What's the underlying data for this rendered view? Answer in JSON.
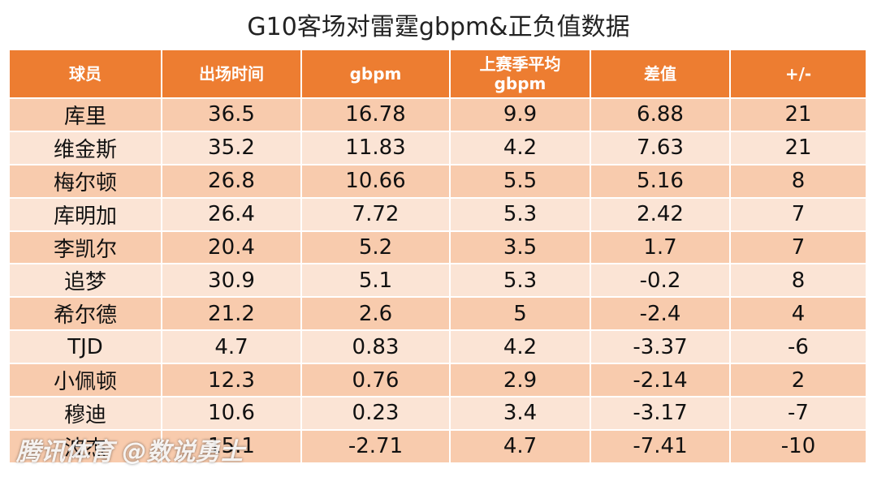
{
  "title": "G10客场对雷霆gbpm&正负值数据",
  "table": {
    "header": [
      "球员",
      "出场时间",
      "gbpm",
      "上赛季平均\ngbpm",
      "差值",
      "+/-"
    ],
    "rows": [
      [
        "库里",
        36.5,
        16.78,
        9.9,
        6.88,
        21
      ],
      [
        "维金斯",
        35.2,
        11.83,
        4.2,
        7.63,
        21
      ],
      [
        "梅尔顿",
        26.8,
        10.66,
        5.5,
        5.16,
        8
      ],
      [
        "库明加",
        26.4,
        7.72,
        5.3,
        2.42,
        7
      ],
      [
        "李凯尔",
        20.4,
        5.2,
        3.5,
        1.7,
        7
      ],
      [
        "追梦",
        30.9,
        5.1,
        5.3,
        -0.2,
        8
      ],
      [
        "希尔德",
        21.2,
        2.6,
        5,
        -2.4,
        4
      ],
      [
        "TJD",
        4.7,
        0.83,
        4.2,
        -3.37,
        -6
      ],
      [
        "小佩顿",
        12.3,
        0.76,
        2.9,
        -2.14,
        2
      ],
      [
        "穆迪",
        10.6,
        0.23,
        3.4,
        -3.17,
        -7
      ],
      [
        "波杰",
        15.1,
        -2.71,
        4.7,
        -7.41,
        -10
      ]
    ]
  },
  "watermark": "腾讯体育 @数说勇士"
}
